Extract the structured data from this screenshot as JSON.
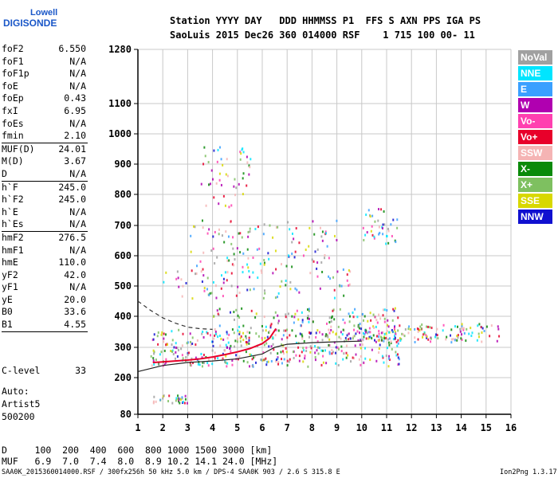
{
  "logo": {
    "line1": "Lowell",
    "line2": "DIGISONDE"
  },
  "header": {
    "row1": "Station YYYY DAY   DDD HHMMSS P1  FFS S AXN PPS IGA PS",
    "row2": "SaoLuis 2015 Dec26 360 014000 RSF    1 715 100 00- 11"
  },
  "params_group1": [
    {
      "label": "foF2",
      "value": "6.550"
    },
    {
      "label": "foF1",
      "value": "N/A"
    },
    {
      "label": "foF1p",
      "value": "N/A"
    },
    {
      "label": "foE",
      "value": "N/A"
    },
    {
      "label": "foEp",
      "value": "0.43"
    },
    {
      "label": "fxI",
      "value": "6.95"
    },
    {
      "label": "foEs",
      "value": "N/A"
    },
    {
      "label": "fmin",
      "value": "2.10"
    }
  ],
  "params_group2": [
    {
      "label": "MUF(D)",
      "value": "24.01"
    },
    {
      "label": "M(D)",
      "value": "3.67"
    },
    {
      "label": "D",
      "value": "N/A"
    }
  ],
  "params_group3": [
    {
      "label": "h`F",
      "value": "245.0"
    },
    {
      "label": "h`F2",
      "value": "245.0"
    },
    {
      "label": "h`E",
      "value": "N/A"
    },
    {
      "label": "h`Es",
      "value": "N/A"
    }
  ],
  "params_group4": [
    {
      "label": "hmF2",
      "value": "276.5"
    },
    {
      "label": "hmF1",
      "value": "N/A"
    },
    {
      "label": "hmE",
      "value": "110.0"
    },
    {
      "label": "yF2",
      "value": "42.0"
    },
    {
      "label": "yF1",
      "value": "N/A"
    },
    {
      "label": "yE",
      "value": "20.0"
    },
    {
      "label": "B0",
      "value": "33.6"
    },
    {
      "label": "B1",
      "value": "4.55"
    }
  ],
  "clevel": {
    "label": "C-level",
    "value": "33"
  },
  "auto": {
    "line1": "Auto:",
    "line2": "Artist5",
    "line3": "500200"
  },
  "legend": [
    {
      "label": "NoVal",
      "color": "#a0a0a0"
    },
    {
      "label": "NNE",
      "color": "#00e5ff"
    },
    {
      "label": "E",
      "color": "#3aa0ff"
    },
    {
      "label": "W",
      "color": "#b000b0"
    },
    {
      "label": "Vo-",
      "color": "#ff40b0"
    },
    {
      "label": "Vo+",
      "color": "#e8002a"
    },
    {
      "label": "SSW",
      "color": "#f5b4b4"
    },
    {
      "label": "X-",
      "color": "#0a8a0a"
    },
    {
      "label": "X+",
      "color": "#7ec060"
    },
    {
      "label": "SSE",
      "color": "#d8d800"
    },
    {
      "label": "NNW",
      "color": "#1010d0"
    }
  ],
  "dtable": {
    "d_row": "D     100  200  400  600  800 1000 1500 3000 [km]",
    "muf_row": "MUF   6.9  7.0  7.4  8.0  8.9 10.2 14.1 24.0 [MHz]"
  },
  "footer": {
    "left": "SAA0K_2015360014000.RSF / 300fx256h 50 kHz 5.0 km / DPS-4 SAA0K 903 / 2.6 S 315.8 E",
    "right": "Ion2Png 1.3.17"
  },
  "chart_data": {
    "type": "scatter",
    "title": "",
    "xlabel": "",
    "ylabel": "",
    "xlim": [
      1,
      16
    ],
    "x_ticks": [
      1,
      2,
      3,
      4,
      5,
      6,
      7,
      8,
      9,
      10,
      11,
      12,
      13,
      14,
      15,
      16
    ],
    "y_ticks": [
      80,
      200,
      300,
      400,
      500,
      600,
      700,
      800,
      900,
      1000,
      1100,
      1280
    ],
    "ylim": [
      80,
      1280
    ],
    "grid": true,
    "series": [
      {
        "type": "echo-trace",
        "color": "#e8002a",
        "x": [
          1.6,
          2.0,
          2.5,
          3.0,
          3.5,
          4.0,
          4.5,
          5.0,
          5.5,
          6.0,
          6.3,
          6.55
        ],
        "y": [
          250,
          252,
          255,
          258,
          262,
          268,
          276,
          285,
          296,
          312,
          330,
          360
        ]
      },
      {
        "type": "virtual-height-profile",
        "color": "#222222",
        "x": [
          1.0,
          2.0,
          3.0,
          4.0,
          5.0,
          6.0,
          6.5,
          7.0,
          8.0,
          9.0,
          10.0
        ],
        "y": [
          220,
          240,
          250,
          255,
          262,
          278,
          300,
          310,
          315,
          318,
          320
        ]
      },
      {
        "type": "dashed-profile",
        "color": "#333333",
        "x": [
          1.0,
          1.5,
          2.0,
          2.5,
          3.0,
          3.5,
          4.0
        ],
        "y": [
          450,
          420,
          395,
          378,
          365,
          360,
          358
        ]
      }
    ]
  }
}
